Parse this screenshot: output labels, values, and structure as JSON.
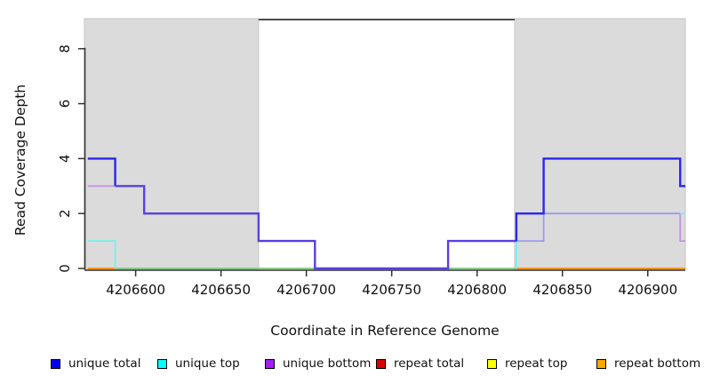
{
  "chart_data": {
    "type": "line",
    "step": true,
    "title": "",
    "xlabel": "Coordinate in Reference Genome",
    "ylabel": "Read Coverage Depth",
    "x_ticks": [
      {
        "bp": 4206600,
        "label": "4206600"
      },
      {
        "bp": 4206650,
        "label": "4206650"
      },
      {
        "bp": 4206700,
        "label": "4206700"
      },
      {
        "bp": 4206750,
        "label": "4206750"
      },
      {
        "bp": 4206800,
        "label": "4206800"
      },
      {
        "bp": 4206850,
        "label": "4206850"
      },
      {
        "bp": 4206900,
        "label": "4206900"
      }
    ],
    "y_ticks": [
      {
        "value": 0,
        "label": "0"
      },
      {
        "value": 2,
        "label": "2"
      },
      {
        "value": 4,
        "label": "4"
      },
      {
        "value": 6,
        "label": "6"
      },
      {
        "value": 8,
        "label": "8"
      }
    ],
    "xlim_bp": [
      4206570,
      4206922
    ],
    "ylim": [
      0,
      9.1
    ],
    "grid": false,
    "legend_position": "bottom",
    "shaded_regions_bp": [
      [
        4206570,
        4206672
      ],
      [
        4206822,
        4206922
      ]
    ],
    "top_border_bp": [
      4206672,
      4206822
    ],
    "series": [
      {
        "name": "unique total",
        "color": "#0000EE",
        "steps": [
          [
            4206572,
            4
          ],
          [
            4206588,
            3
          ],
          [
            4206605,
            2
          ],
          [
            4206672,
            1
          ],
          [
            4206705,
            0
          ],
          [
            4206783,
            1
          ],
          [
            4206823,
            2
          ],
          [
            4206839,
            4
          ],
          [
            4206919,
            3
          ]
        ],
        "end_bp": 4206922
      },
      {
        "name": "unique top",
        "color": "#00FFFF",
        "steps": [
          [
            4206572,
            1
          ],
          [
            4206588,
            0
          ],
          [
            4206823,
            1
          ],
          [
            4206839,
            2
          ]
        ],
        "end_bp": 4206922
      },
      {
        "name": "unique bottom",
        "color": "#A020F0",
        "steps": [
          [
            4206572,
            3
          ],
          [
            4206605,
            2
          ],
          [
            4206672,
            1
          ],
          [
            4206705,
            0
          ],
          [
            4206783,
            1
          ],
          [
            4206839,
            2
          ],
          [
            4206919,
            1
          ]
        ],
        "end_bp": 4206922
      },
      {
        "name": "repeat total",
        "color": "#DD0000",
        "steps": [
          [
            4206572,
            0
          ]
        ],
        "end_bp": 4206922
      },
      {
        "name": "repeat top",
        "color": "#FFFF00",
        "steps": [
          [
            4206572,
            0
          ]
        ],
        "end_bp": 4206922
      },
      {
        "name": "repeat bottom",
        "color": "#FFA500",
        "steps": [
          [
            4206572,
            0
          ]
        ],
        "end_bp": 4206922
      }
    ],
    "render_colors": {
      "blue": "#2B26EE",
      "indigo": "#5940E0",
      "plum": "#C493DC",
      "cyan": "#6FF2F2",
      "periwinkle": "#9D9AEC",
      "green": "#7CC87C",
      "orange": "#FF8C00",
      "shade_fill": "#DBDBDB",
      "shade_border": "#C6C6C6",
      "axis": "#333333",
      "top_border": "#4D4D4D"
    },
    "visible_segments": [
      {
        "color": "green",
        "width": 1.8,
        "steps": [
          [
            4206588,
            0
          ]
        ],
        "end_bp": 4206823
      },
      {
        "color": "orange",
        "width": 1.8,
        "steps": [
          [
            4206572,
            0
          ]
        ],
        "end_bp": 4206588
      },
      {
        "color": "orange",
        "width": 1.8,
        "steps": [
          [
            4206823,
            0
          ]
        ],
        "end_bp": 4206922
      },
      {
        "color": "plum",
        "width": 1.8,
        "steps": [
          [
            4206572,
            3
          ]
        ],
        "end_bp": 4206605
      },
      {
        "color": "cyan",
        "width": 1.8,
        "steps": [
          [
            4206572,
            1
          ],
          [
            4206588,
            0
          ]
        ],
        "end_bp": 4206588
      },
      {
        "color": "cyan",
        "width": 1.8,
        "steps": [
          [
            4206823,
            0
          ],
          [
            4206823,
            1
          ]
        ],
        "end_bp": 4206823
      },
      {
        "color": "periwinkle",
        "width": 1.8,
        "steps": [
          [
            4206823,
            1
          ],
          [
            4206839,
            2
          ]
        ],
        "end_bp": 4206919
      },
      {
        "color": "plum",
        "width": 1.8,
        "steps": [
          [
            4206919,
            2
          ],
          [
            4206919,
            1
          ]
        ],
        "end_bp": 4206922
      },
      {
        "color": "cyan",
        "width": 1.8,
        "steps": [
          [
            4206919,
            2
          ]
        ],
        "end_bp": 4206922
      },
      {
        "color": "blue",
        "width": 2.4,
        "steps": [
          [
            4206572,
            4
          ],
          [
            4206588,
            3
          ]
        ],
        "end_bp": 4206588
      },
      {
        "color": "indigo",
        "width": 2.4,
        "steps": [
          [
            4206588,
            3
          ],
          [
            4206605,
            2
          ],
          [
            4206672,
            1
          ],
          [
            4206705,
            0
          ],
          [
            4206783,
            1
          ]
        ],
        "end_bp": 4206823
      },
      {
        "color": "blue",
        "width": 2.4,
        "steps": [
          [
            4206823,
            1
          ],
          [
            4206823,
            2
          ],
          [
            4206839,
            4
          ],
          [
            4206919,
            3
          ]
        ],
        "end_bp": 4206922
      }
    ]
  },
  "legend": {
    "items": [
      {
        "label": "unique total",
        "color": "#0000EE"
      },
      {
        "label": "unique top",
        "color": "#00FFFF"
      },
      {
        "label": "unique bottom",
        "color": "#A020F0"
      },
      {
        "label": "repeat total",
        "color": "#DD0000"
      },
      {
        "label": "repeat top",
        "color": "#FFFF00"
      },
      {
        "label": "repeat bottom",
        "color": "#FFA500"
      }
    ]
  }
}
